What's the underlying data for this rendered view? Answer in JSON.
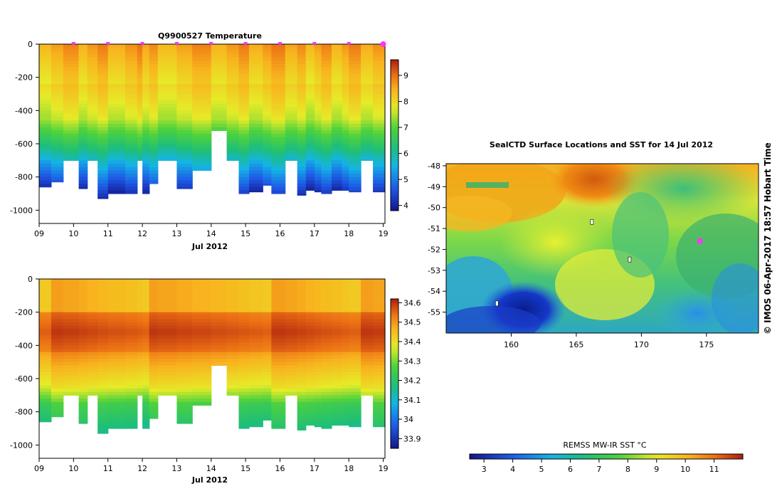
{
  "chart_data": [
    {
      "type": "heatmap",
      "title": "Q9900527  Temperature",
      "xlabel": "Jul 2012",
      "ylabel": "",
      "x_ticks": [
        "09",
        "10",
        "11",
        "12",
        "13",
        "14",
        "15",
        "16",
        "17",
        "18",
        "19"
      ],
      "y_ticks": [
        "0",
        "-200",
        "-400",
        "-600",
        "-800",
        "-1000"
      ],
      "xlim": [
        9.0,
        19.05
      ],
      "ylim": [
        -1080,
        0
      ],
      "colorbar": {
        "ticks": [
          "4",
          "5",
          "6",
          "7",
          "8",
          "9"
        ],
        "range": [
          3.8,
          9.6
        ]
      },
      "profile_markers_days": [
        10,
        11,
        12,
        13,
        14,
        15,
        16,
        17,
        18,
        19
      ],
      "colormap": "jet-like",
      "profiles": [
        {
          "day": 9.0,
          "max_depth": 860
        },
        {
          "day": 9.35,
          "max_depth": 830
        },
        {
          "day": 9.7,
          "max_depth": 700
        },
        {
          "day": 10.15,
          "max_depth": 870
        },
        {
          "day": 10.4,
          "max_depth": 700
        },
        {
          "day": 10.7,
          "max_depth": 930
        },
        {
          "day": 11.0,
          "max_depth": 900
        },
        {
          "day": 11.5,
          "max_depth": 900
        },
        {
          "day": 11.85,
          "max_depth": 700
        },
        {
          "day": 12.0,
          "max_depth": 900
        },
        {
          "day": 12.2,
          "max_depth": 840
        },
        {
          "day": 12.45,
          "max_depth": 700
        },
        {
          "day": 13.0,
          "max_depth": 870
        },
        {
          "day": 13.45,
          "max_depth": 760
        },
        {
          "day": 14.0,
          "max_depth": 520
        },
        {
          "day": 14.45,
          "max_depth": 700
        },
        {
          "day": 14.8,
          "max_depth": 900
        },
        {
          "day": 15.1,
          "max_depth": 890
        },
        {
          "day": 15.5,
          "max_depth": 850
        },
        {
          "day": 15.75,
          "max_depth": 900
        },
        {
          "day": 16.15,
          "max_depth": 700
        },
        {
          "day": 16.5,
          "max_depth": 910
        },
        {
          "day": 16.75,
          "max_depth": 880
        },
        {
          "day": 17.0,
          "max_depth": 890
        },
        {
          "day": 17.2,
          "max_depth": 900
        },
        {
          "day": 17.5,
          "max_depth": 880
        },
        {
          "day": 17.8,
          "max_depth": 880
        },
        {
          "day": 18.0,
          "max_depth": 890
        },
        {
          "day": 18.35,
          "max_depth": 700
        },
        {
          "day": 18.7,
          "max_depth": 890
        }
      ]
    },
    {
      "type": "heatmap",
      "title": "",
      "xlabel": "Jul 2012",
      "ylabel": "",
      "x_ticks": [
        "09",
        "10",
        "11",
        "12",
        "13",
        "14",
        "15",
        "16",
        "17",
        "18",
        "19"
      ],
      "y_ticks": [
        "0",
        "-200",
        "-400",
        "-600",
        "-800",
        "-1000"
      ],
      "xlim": [
        9.0,
        19.05
      ],
      "ylim": [
        -1080,
        0
      ],
      "colorbar": {
        "ticks": [
          "33.9",
          "34",
          "34.1",
          "34.2",
          "34.3",
          "34.4",
          "34.5",
          "34.6"
        ],
        "range": [
          33.85,
          34.62
        ]
      },
      "colormap": "jet-like"
    },
    {
      "type": "heatmap",
      "title": "SealCTD Surface Locations and SST for 14 Jul 2012",
      "xlabel": "",
      "ylabel": "",
      "x_ticks": [
        "160",
        "165",
        "170",
        "175"
      ],
      "y_ticks": [
        "-48",
        "-49",
        "-50",
        "-51",
        "-52",
        "-53",
        "-54",
        "-55"
      ],
      "xlim": [
        155.0,
        179.0
      ],
      "ylim": [
        -56.0,
        -47.9
      ],
      "colorbar": {
        "label": "REMSS MW-IR SST °C",
        "ticks": [
          "3",
          "4",
          "5",
          "6",
          "7",
          "8",
          "9",
          "10",
          "11"
        ],
        "range": [
          2.5,
          12.0
        ]
      },
      "current_location": {
        "lon": 174.5,
        "lat": -51.6,
        "color": "#ff33ff"
      },
      "colormap": "jet-like"
    }
  ],
  "credit": "© IMOS 06-Apr-2017 18:57 Hobart Time"
}
